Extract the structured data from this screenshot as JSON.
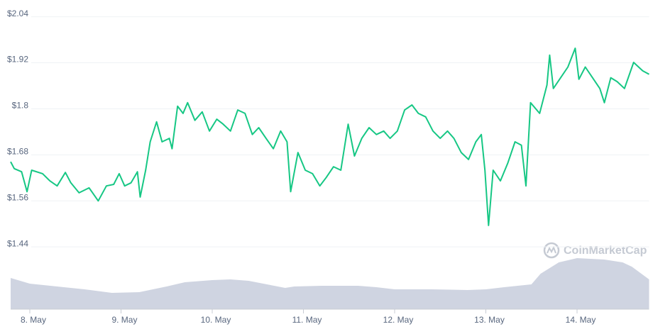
{
  "chart_data": {
    "type": "line",
    "watermark": "CoinMarketCap",
    "xlim": [
      7.79,
      14.79
    ],
    "xticks": [
      {
        "value": 8,
        "label": "8. May"
      },
      {
        "value": 9,
        "label": "9. May"
      },
      {
        "value": 10,
        "label": "10. May"
      },
      {
        "value": 11,
        "label": "11. May"
      },
      {
        "value": 12,
        "label": "12. May"
      },
      {
        "value": 13,
        "label": "13. May"
      },
      {
        "value": 14,
        "label": "14. May"
      }
    ],
    "ylim": [
      1.42,
      2.08
    ],
    "yticks": [
      {
        "value": 2.04,
        "label": "$2.04"
      },
      {
        "value": 1.92,
        "label": "$1.92"
      },
      {
        "value": 1.8,
        "label": "$1.8"
      },
      {
        "value": 1.68,
        "label": "$1.68"
      },
      {
        "value": 1.56,
        "label": "$1.56"
      },
      {
        "value": 1.44,
        "label": "$1.44"
      }
    ],
    "grid": true,
    "series": [
      {
        "color": "#16c784",
        "x": [
          7.79,
          7.83,
          7.91,
          7.97,
          8.02,
          8.14,
          8.22,
          8.3,
          8.39,
          8.45,
          8.54,
          8.65,
          8.75,
          8.84,
          8.92,
          8.98,
          9.04,
          9.11,
          9.18,
          9.21,
          9.27,
          9.32,
          9.39,
          9.45,
          9.53,
          9.56,
          9.62,
          9.68,
          9.73,
          9.81,
          9.89,
          9.97,
          10.05,
          10.12,
          10.2,
          10.28,
          10.36,
          10.44,
          10.51,
          10.59,
          10.67,
          10.75,
          10.82,
          10.86,
          10.94,
          11.02,
          11.1,
          11.18,
          11.25,
          11.33,
          11.41,
          11.49,
          11.56,
          11.64,
          11.72,
          11.8,
          11.88,
          11.95,
          12.03,
          12.11,
          12.19,
          12.26,
          12.34,
          12.42,
          12.5,
          12.58,
          12.65,
          12.73,
          12.81,
          12.89,
          12.95,
          12.99,
          13.03,
          13.08,
          13.16,
          13.24,
          13.32,
          13.39,
          13.44,
          13.49,
          13.59,
          13.67,
          13.7,
          13.74,
          13.82,
          13.9,
          13.98,
          14.02,
          14.09,
          14.17,
          14.25,
          14.3,
          14.37,
          14.44,
          14.52,
          14.62,
          14.72,
          14.79
        ],
        "values": [
          1.662,
          1.644,
          1.636,
          1.584,
          1.64,
          1.631,
          1.612,
          1.599,
          1.634,
          1.607,
          1.581,
          1.594,
          1.56,
          1.599,
          1.603,
          1.631,
          1.599,
          1.607,
          1.636,
          1.57,
          1.64,
          1.714,
          1.766,
          1.714,
          1.723,
          1.696,
          1.807,
          1.788,
          1.816,
          1.77,
          1.792,
          1.742,
          1.773,
          1.76,
          1.742,
          1.797,
          1.788,
          1.733,
          1.751,
          1.723,
          1.696,
          1.742,
          1.714,
          1.584,
          1.686,
          1.64,
          1.631,
          1.599,
          1.621,
          1.649,
          1.64,
          1.76,
          1.677,
          1.723,
          1.751,
          1.733,
          1.742,
          1.723,
          1.742,
          1.797,
          1.81,
          1.788,
          1.779,
          1.742,
          1.723,
          1.742,
          1.723,
          1.686,
          1.668,
          1.714,
          1.733,
          1.64,
          1.496,
          1.64,
          1.612,
          1.658,
          1.714,
          1.705,
          1.599,
          1.816,
          1.788,
          1.862,
          1.94,
          1.853,
          1.881,
          1.909,
          1.958,
          1.877,
          1.909,
          1.881,
          1.853,
          1.816,
          1.881,
          1.871,
          1.853,
          1.921,
          1.899,
          1.89
        ]
      }
    ],
    "volume": {
      "color": "#cfd4e1",
      "ylim": [
        0,
        100
      ],
      "x": [
        7.79,
        8.0,
        8.3,
        8.6,
        8.9,
        9.2,
        9.5,
        9.7,
        10.0,
        10.2,
        10.4,
        10.6,
        10.8,
        10.9,
        11.2,
        11.6,
        11.8,
        12.0,
        12.4,
        12.8,
        13.0,
        13.2,
        13.5,
        13.6,
        13.8,
        14.0,
        14.3,
        14.5,
        14.6,
        14.79
      ],
      "values": [
        44,
        36,
        32,
        28,
        23,
        24,
        32,
        38,
        41,
        42,
        40,
        35,
        30,
        32,
        33,
        33,
        31,
        28,
        28,
        27,
        28,
        31,
        35,
        50,
        66,
        72,
        70,
        66,
        60,
        42
      ]
    }
  }
}
